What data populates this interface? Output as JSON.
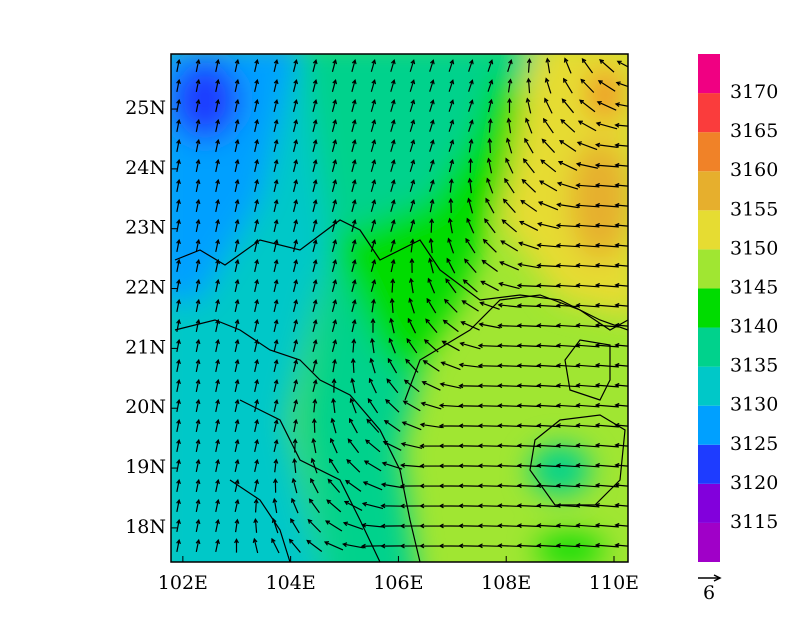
{
  "map": {
    "xlim": [
      101.78,
      110.26
    ],
    "ylim": [
      17.43,
      25.92
    ],
    "xticks": [
      {
        "value": 102,
        "label": "102E"
      },
      {
        "value": 104,
        "label": "104E"
      },
      {
        "value": 106,
        "label": "106E"
      },
      {
        "value": 108,
        "label": "108E"
      },
      {
        "value": 110,
        "label": "110E"
      }
    ],
    "yticks": [
      {
        "value": 18,
        "label": "18N"
      },
      {
        "value": 19,
        "label": "19N"
      },
      {
        "value": 20,
        "label": "20N"
      },
      {
        "value": 21,
        "label": "21N"
      },
      {
        "value": 22,
        "label": "22N"
      },
      {
        "value": 23,
        "label": "23N"
      },
      {
        "value": 24,
        "label": "24N"
      },
      {
        "value": 25,
        "label": "25N"
      }
    ],
    "colorbar": {
      "levels": [
        3115,
        3120,
        3125,
        3130,
        3135,
        3140,
        3145,
        3150,
        3155,
        3160,
        3165,
        3170
      ],
      "colors": [
        "#a000c8",
        "#8200dc",
        "#1e3cff",
        "#00a0ff",
        "#00c8c8",
        "#00d28c",
        "#00dc00",
        "#a0e632",
        "#e6dc32",
        "#e6af2d",
        "#f08228",
        "#fa3c3c",
        "#f00082"
      ]
    },
    "vector_reference": "6"
  }
}
